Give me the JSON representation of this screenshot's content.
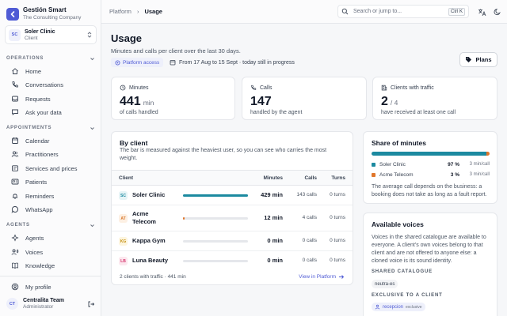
{
  "brand": {
    "name": "Gestión Smart",
    "tagline": "The Consulting Company"
  },
  "client_selector": {
    "initials": "SC",
    "name": "Soler Clinic",
    "role": "Client"
  },
  "sidebar": {
    "sections": [
      {
        "title": "OPERATIONS",
        "items": [
          {
            "label": "Home",
            "icon": "home-icon"
          },
          {
            "label": "Conversations",
            "icon": "phone-icon"
          },
          {
            "label": "Requests",
            "icon": "inbox-icon"
          },
          {
            "label": "Ask your data",
            "icon": "chat-icon"
          }
        ]
      },
      {
        "title": "APPOINTMENTS",
        "items": [
          {
            "label": "Calendar",
            "icon": "calendar-icon"
          },
          {
            "label": "Practitioners",
            "icon": "users-icon"
          },
          {
            "label": "Services and prices",
            "icon": "tag-icon"
          },
          {
            "label": "Patients",
            "icon": "id-card-icon"
          },
          {
            "label": "Reminders",
            "icon": "bell-icon"
          },
          {
            "label": "WhatsApp",
            "icon": "whatsapp-icon"
          }
        ]
      },
      {
        "title": "AGENTS",
        "items": [
          {
            "label": "Agents",
            "icon": "agents-icon"
          },
          {
            "label": "Voices",
            "icon": "mic-icon"
          },
          {
            "label": "Knowledge",
            "icon": "book-icon"
          }
        ]
      }
    ],
    "profile": {
      "label": "My profile",
      "icon": "user-circle-icon"
    },
    "user": {
      "initials": "CT",
      "name": "Centralita Team",
      "role": "Administrator"
    }
  },
  "topbar": {
    "breadcrumb": [
      "Platform",
      "Usage"
    ],
    "separator": "›",
    "search_placeholder": "Search or jump to...",
    "shortcut": "Ctrl K"
  },
  "header": {
    "title": "Usage",
    "subtitle": "Minutes and calls per client over the last 30 days.",
    "access_badge": "Platform access",
    "period": "From 17 Aug to 15 Sept · today still in progress",
    "plans_label": "Plans"
  },
  "stats": [
    {
      "label": "Minutes",
      "icon": "clock-icon",
      "value": "441",
      "unit": "min",
      "desc": "of calls handled"
    },
    {
      "label": "Calls",
      "icon": "phone-icon",
      "value": "147",
      "unit": "",
      "desc": "handled by the agent"
    },
    {
      "label": "Clients with traffic",
      "icon": "building-icon",
      "value": "2",
      "unit": "/ 4",
      "desc": "have received at least one call"
    }
  ],
  "by_client": {
    "title": "By client",
    "desc": "The bar is measured against the heaviest user, so you can see who carries the most weight.",
    "columns": [
      "Client",
      "Minutes",
      "Calls",
      "Turns"
    ],
    "rows": [
      {
        "initials": "SC",
        "name": "Soler Clinic",
        "minutes": "429 min",
        "calls": "143 calls",
        "turns": "0 turns",
        "fraction": 1.0,
        "color": "#1c8aa0",
        "av_bg": "#e6f4f6",
        "av_fg": "#1c8aa0"
      },
      {
        "initials": "AT",
        "name": "Acme Telecom",
        "minutes": "12 min",
        "calls": "4 calls",
        "turns": "0 turns",
        "fraction": 0.028,
        "color": "#e0762b",
        "av_bg": "#fdf0e3",
        "av_fg": "#d9772b"
      },
      {
        "initials": "KG",
        "name": "Kappa Gym",
        "minutes": "0 min",
        "calls": "0 calls",
        "turns": "0 turns",
        "fraction": 0,
        "color": "#d9a521",
        "av_bg": "#fdf5de",
        "av_fg": "#c48f12"
      },
      {
        "initials": "LB",
        "name": "Luna Beauty",
        "minutes": "0 min",
        "calls": "0 calls",
        "turns": "0 turns",
        "fraction": 0,
        "color": "#d6336c",
        "av_bg": "#fce8ef",
        "av_fg": "#d6336c"
      }
    ],
    "footer": "2 clients with traffic · 441 min",
    "link": "View in Platform"
  },
  "share": {
    "title": "Share of minutes",
    "rows": [
      {
        "name": "Soler Clinic",
        "pct": "97 %",
        "rate": "3 min/call",
        "fraction": 0.97,
        "color": "#1c8aa0"
      },
      {
        "name": "Acme Telecom",
        "pct": "3 %",
        "rate": "3 min/call",
        "fraction": 0.03,
        "color": "#e0762b"
      }
    ],
    "note": "The average call depends on the business: a booking does not take as long as a fault report."
  },
  "voices": {
    "title": "Available voices",
    "desc": "Voices in the shared catalogue are available to everyone. A client's own voices belong to that client and are not offered to anyone else: a cloned voice is its sound identity.",
    "shared_heading": "SHARED CATALOGUE",
    "shared_voice": "neutra-es",
    "exclusive_heading": "EXCLUSIVE TO A CLIENT",
    "exclusive_voice": "recepcion",
    "exclusive_tag": "exclusive"
  },
  "colors": {
    "accent": "#4f5bd5",
    "teal": "#1c8aa0",
    "orange": "#e0762b"
  }
}
